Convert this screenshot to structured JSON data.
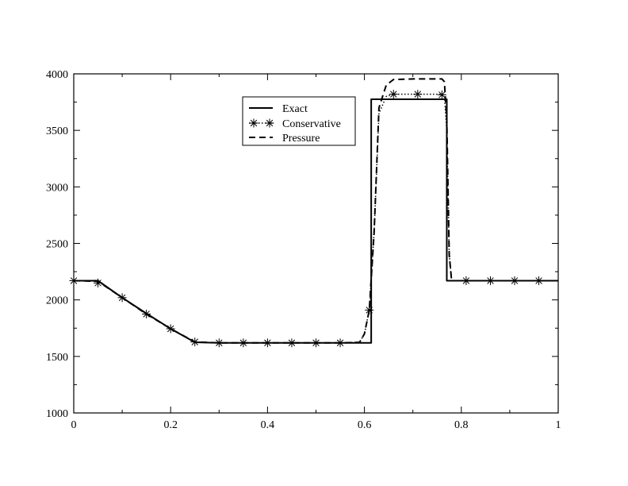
{
  "chart_data": {
    "type": "line",
    "title": "",
    "xlabel": "",
    "ylabel": "",
    "xlim": [
      0,
      1
    ],
    "ylim": [
      1000,
      4000
    ],
    "x_ticks": [
      0,
      0.2,
      0.4,
      0.6,
      0.8,
      1
    ],
    "x_tick_labels": [
      "0",
      "0.2",
      "0.4",
      "0.6",
      "0.8",
      "1"
    ],
    "y_ticks": [
      1000,
      1500,
      2000,
      2500,
      3000,
      3500,
      4000
    ],
    "y_tick_labels": [
      "1000",
      "1500",
      "2000",
      "2500",
      "3000",
      "3500",
      "4000"
    ],
    "grid": false,
    "legend_position": "top-center",
    "series": [
      {
        "name": "Exact",
        "style": "solid",
        "color": "#000000",
        "points": [
          [
            0,
            2170
          ],
          [
            0.05,
            2170
          ],
          [
            0.1,
            2020
          ],
          [
            0.15,
            1880
          ],
          [
            0.2,
            1745
          ],
          [
            0.25,
            1625
          ],
          [
            0.3,
            1620
          ],
          [
            0.35,
            1620
          ],
          [
            0.4,
            1620
          ],
          [
            0.45,
            1620
          ],
          [
            0.5,
            1620
          ],
          [
            0.55,
            1620
          ],
          [
            0.614,
            1620
          ],
          [
            0.614,
            3775
          ],
          [
            0.77,
            3775
          ],
          [
            0.77,
            2170
          ],
          [
            1,
            2170
          ]
        ]
      },
      {
        "name": "Conservative",
        "style": "dotted-star",
        "color": "#000000",
        "points": [
          [
            0,
            2170
          ],
          [
            0.05,
            2165
          ],
          [
            0.1,
            2020
          ],
          [
            0.15,
            1875
          ],
          [
            0.2,
            1745
          ],
          [
            0.25,
            1628
          ],
          [
            0.3,
            1620
          ],
          [
            0.35,
            1620
          ],
          [
            0.4,
            1620
          ],
          [
            0.45,
            1620
          ],
          [
            0.5,
            1620
          ],
          [
            0.55,
            1620
          ],
          [
            0.59,
            1625
          ],
          [
            0.6,
            1700
          ],
          [
            0.61,
            1910
          ],
          [
            0.62,
            2600
          ],
          [
            0.63,
            3650
          ],
          [
            0.645,
            3800
          ],
          [
            0.66,
            3820
          ],
          [
            0.71,
            3820
          ],
          [
            0.76,
            3820
          ],
          [
            0.765,
            3810
          ],
          [
            0.77,
            3500
          ],
          [
            0.775,
            2400
          ],
          [
            0.78,
            2170
          ],
          [
            0.82,
            2170
          ],
          [
            0.87,
            2170
          ],
          [
            0.92,
            2170
          ],
          [
            0.97,
            2170
          ],
          [
            1,
            2170
          ]
        ],
        "markers": [
          [
            0,
            2170
          ],
          [
            0.05,
            2150
          ],
          [
            0.1,
            2020
          ],
          [
            0.15,
            1875
          ],
          [
            0.2,
            1745
          ],
          [
            0.25,
            1628
          ],
          [
            0.3,
            1620
          ],
          [
            0.35,
            1620
          ],
          [
            0.4,
            1620
          ],
          [
            0.45,
            1620
          ],
          [
            0.5,
            1620
          ],
          [
            0.55,
            1620
          ],
          [
            0.61,
            1910
          ],
          [
            0.66,
            3820
          ],
          [
            0.71,
            3820
          ],
          [
            0.76,
            3815
          ],
          [
            0.81,
            2170
          ],
          [
            0.86,
            2170
          ],
          [
            0.91,
            2170
          ],
          [
            0.96,
            2170
          ]
        ]
      },
      {
        "name": "Pressure",
        "style": "dashed",
        "color": "#000000",
        "points": [
          [
            0,
            2170
          ],
          [
            0.05,
            2165
          ],
          [
            0.1,
            2020
          ],
          [
            0.15,
            1875
          ],
          [
            0.2,
            1745
          ],
          [
            0.25,
            1628
          ],
          [
            0.3,
            1620
          ],
          [
            0.35,
            1620
          ],
          [
            0.4,
            1620
          ],
          [
            0.45,
            1620
          ],
          [
            0.5,
            1620
          ],
          [
            0.55,
            1620
          ],
          [
            0.59,
            1625
          ],
          [
            0.6,
            1700
          ],
          [
            0.61,
            1910
          ],
          [
            0.62,
            2600
          ],
          [
            0.63,
            3700
          ],
          [
            0.645,
            3900
          ],
          [
            0.66,
            3950
          ],
          [
            0.7,
            3955
          ],
          [
            0.76,
            3955
          ],
          [
            0.765,
            3930
          ],
          [
            0.77,
            3600
          ],
          [
            0.775,
            2400
          ],
          [
            0.78,
            2170
          ],
          [
            1,
            2170
          ]
        ]
      }
    ]
  }
}
